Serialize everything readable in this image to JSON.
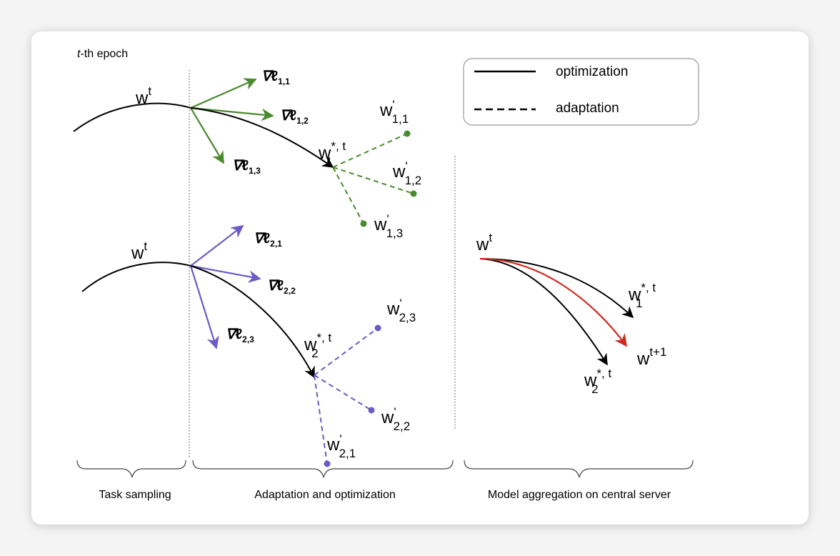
{
  "epoch_label": {
    "italic": "t",
    "rest": "-th epoch"
  },
  "legend": {
    "optimization": "optimization",
    "adaptation": "adaptation"
  },
  "sections": {
    "task_sampling": "Task sampling",
    "adaptation_optimization": "Adaptation and optimization",
    "model_aggregation": "Model aggregation on central server"
  },
  "symbols": {
    "w": "w",
    "t": "t",
    "star_t": "*, t",
    "prime": "'",
    "nabla": "∇",
    "ell": "ℓ",
    "t_plus_1": "t+1",
    "sub_1": "1",
    "sub_2": "2",
    "sub_11": "1,1",
    "sub_12": "1,2",
    "sub_13": "1,3",
    "sub_21": "2,1",
    "sub_22": "2,2",
    "sub_23": "2,3"
  },
  "colors": {
    "task1": "#4a8a2e",
    "task2": "#6a5cc4",
    "aggregate": "#d02a20",
    "line": "#000000"
  }
}
